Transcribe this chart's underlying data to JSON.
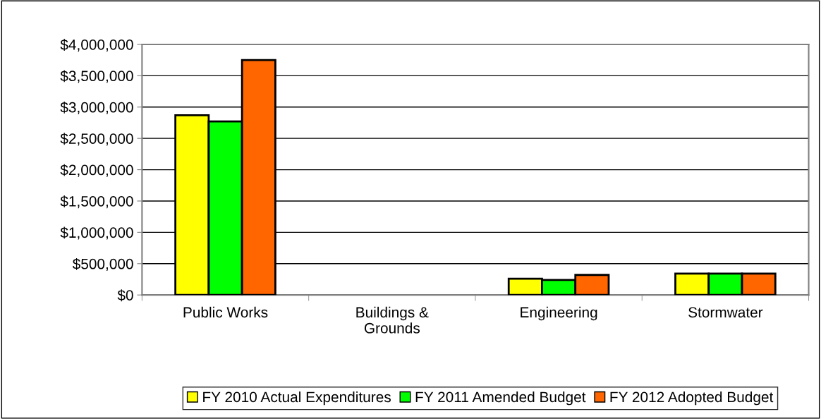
{
  "chart_data": {
    "type": "bar",
    "categories": [
      "Public Works",
      "Buildings &\nGrounds",
      "Engineering",
      "Stormwater"
    ],
    "series": [
      {
        "name": "FY 2010 Actual Expenditures",
        "color": "#ffff00",
        "values": [
          2870000,
          null,
          260000,
          340000
        ]
      },
      {
        "name": "FY 2011 Amended Budget",
        "color": "#00ff00",
        "values": [
          2770000,
          null,
          240000,
          340000
        ]
      },
      {
        "name": "FY 2012 Adopted Budget",
        "color": "#ff6600",
        "values": [
          3750000,
          null,
          320000,
          340000
        ]
      }
    ],
    "ylim": [
      0,
      4000000
    ],
    "yticks": [
      {
        "value": 0,
        "label": "$0"
      },
      {
        "value": 500000,
        "label": "$500,000"
      },
      {
        "value": 1000000,
        "label": "$1,000,000"
      },
      {
        "value": 1500000,
        "label": "$1,500,000"
      },
      {
        "value": 2000000,
        "label": "$2,000,000"
      },
      {
        "value": 2500000,
        "label": "$2,500,000"
      },
      {
        "value": 3000000,
        "label": "$3,000,000"
      },
      {
        "value": 3500000,
        "label": "$3,500,000"
      },
      {
        "value": 4000000,
        "label": "$4,000,000"
      }
    ],
    "grid": "y",
    "legend": "bottom"
  }
}
